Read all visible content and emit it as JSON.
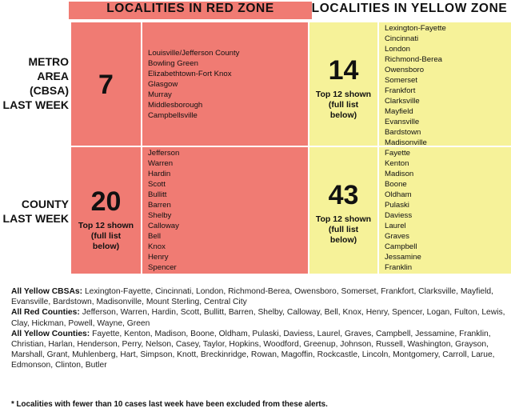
{
  "headers": {
    "red": "LOCALITIES IN RED ZONE",
    "yellow": "LOCALITIES IN YELLOW ZONE"
  },
  "rows": {
    "metro": [
      "METRO",
      "AREA",
      "(CBSA)",
      "LAST WEEK"
    ],
    "county": [
      "COUNTY",
      "LAST WEEK"
    ]
  },
  "metro": {
    "red_count": "7",
    "red_list": [
      "Louisville/Jefferson County",
      "Bowling Green",
      "Elizabethtown-Fort Knox",
      "Glasgow",
      "Murray",
      "Middlesborough",
      "Campbellsville"
    ],
    "yellow_count": "14",
    "yellow_note": [
      "Top 12 shown",
      "(full list",
      "below)"
    ],
    "yellow_list": [
      "Lexington-Fayette",
      "Cincinnati",
      "London",
      "Richmond-Berea",
      "Owensboro",
      "Somerset",
      "Frankfort",
      "Clarksville",
      "Mayfield",
      "Evansville",
      "Bardstown",
      "Madisonville"
    ]
  },
  "county": {
    "red_count": "20",
    "red_note": [
      "Top 12 shown",
      "(full list",
      "below)"
    ],
    "red_list": [
      "Jefferson",
      "Warren",
      "Hardin",
      "Scott",
      "Bullitt",
      "Barren",
      "Shelby",
      "Calloway",
      "Bell",
      "Knox",
      "Henry",
      "Spencer"
    ],
    "yellow_count": "43",
    "yellow_note": [
      "Top 12 shown",
      "(full list",
      "below)"
    ],
    "yellow_list": [
      "Fayette",
      "Kenton",
      "Madison",
      "Boone",
      "Oldham",
      "Pulaski",
      "Daviess",
      "Laurel",
      "Graves",
      "Campbell",
      "Jessamine",
      "Franklin"
    ]
  },
  "summary": {
    "yellow_cbsas_label": "All Yellow CBSAs:",
    "yellow_cbsas": "Lexington-Fayette, Cincinnati, London, Richmond-Berea, Owensboro, Somerset, Frankfort, Clarksville, Mayfield, Evansville, Bardstown, Madisonville, Mount Sterling, Central City",
    "red_counties_label": "All Red Counties:",
    "red_counties": "Jefferson, Warren, Hardin, Scott, Bullitt, Barren, Shelby, Calloway, Bell, Knox, Henry, Spencer, Logan, Fulton, Lewis, Clay, Hickman, Powell, Wayne, Green",
    "yellow_counties_label": "All Yellow Counties:",
    "yellow_counties": "Fayette, Kenton, Madison, Boone, Oldham, Pulaski, Daviess, Laurel, Graves, Campbell, Jessamine, Franklin, Christian, Harlan, Henderson, Perry, Nelson, Casey, Taylor, Hopkins, Woodford, Greenup, Johnson, Russell, Washington, Grayson, Marshall, Grant, Muhlenberg, Hart, Simpson, Knott, Breckinridge, Rowan, Magoffin, Rockcastle, Lincoln, Montgomery, Carroll, Larue, Edmonson, Clinton, Butler"
  },
  "footnote": "* Localities with fewer than 10 cases last week have been excluded from these alerts.",
  "colors": {
    "red_zone": "#f07b73",
    "yellow_zone": "#f6f299"
  }
}
